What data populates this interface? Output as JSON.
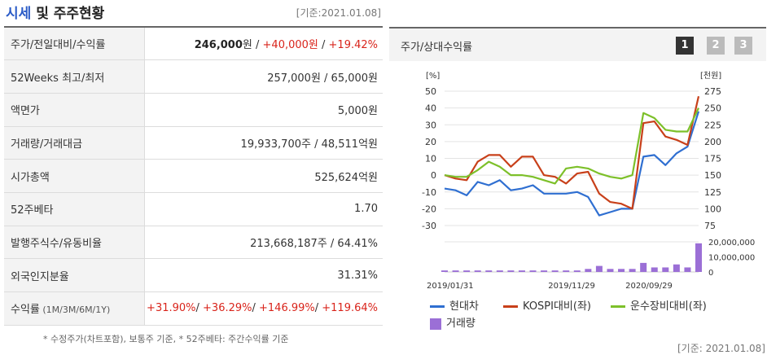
{
  "header": {
    "title_blue": "시세",
    "title_rest": " 및 주주현황",
    "date": "[기준:2021.01.08]"
  },
  "table": {
    "rows": [
      {
        "label": "주가/전일대비/수익률",
        "v1": "246,000",
        "u1": "원",
        "sep1": " / ",
        "v2": "+40,000원",
        "sep2": " / ",
        "v3": "+19.42%"
      },
      {
        "label": "52Weeks 최고/최저",
        "value": "257,000원 / 65,000원"
      },
      {
        "label": "액면가",
        "value": "5,000원"
      },
      {
        "label": "거래량/거래대금",
        "value": "19,933,700주 / 48,511억원"
      },
      {
        "label": "시가총액",
        "value": "525,624억원"
      },
      {
        "label": "52주베타",
        "value": "1.70"
      },
      {
        "label": "발행주식수/유동비율",
        "value": "213,668,187주 / 64.41%"
      },
      {
        "label": "외국인지분율",
        "value": "31.31%"
      },
      {
        "label": "수익률",
        "label_small": " (1M/3M/6M/1Y)",
        "r1": "+31.90%",
        "r2": "+36.29%",
        "r3": "+146.99%",
        "r4": "+119.64%",
        "sep": "/ "
      }
    ],
    "note": "* 수정주가(차트포함), 보통주 기준, * 52주베타: 주간수익률 기준"
  },
  "chart_panel": {
    "title": "주가/상대수익률",
    "pages": [
      "1",
      "2",
      "3"
    ],
    "date": "[기준: 2021.01.08]"
  },
  "chart_data": {
    "type": "line",
    "left_unit": "[%]",
    "right_unit": "[천원]",
    "y_left_ticks": [
      "50",
      "40",
      "30",
      "20",
      "10",
      "0",
      "-10",
      "-20",
      "-30"
    ],
    "y_right_ticks": [
      "275",
      "250",
      "225",
      "200",
      "175",
      "150",
      "125",
      "100",
      "75"
    ],
    "volume_ticks": [
      "20,000,000",
      "10,000,000",
      "0"
    ],
    "x_ticks": [
      "2019/01/31",
      "2019/11/29",
      "2020/09/29"
    ],
    "ylim_left": [
      -30,
      50
    ],
    "ylim_right": [
      75,
      275
    ],
    "series": [
      {
        "name": "현대차",
        "color": "#2f6fd1",
        "values": [
          -8,
          -9,
          -12,
          -4,
          -6,
          -3,
          -9,
          -8,
          -6,
          -11,
          -11,
          -11,
          -10,
          -13,
          -24,
          -22,
          -20,
          -20,
          11,
          12,
          6,
          13,
          17,
          38
        ]
      },
      {
        "name": "KOSPI대비(좌)",
        "color": "#c8401a",
        "values": [
          0,
          -2,
          -3,
          8,
          12,
          12,
          5,
          11,
          11,
          0,
          -1,
          -5,
          1,
          2,
          -11,
          -16,
          -17,
          -20,
          31,
          32,
          23,
          21,
          18,
          47
        ]
      },
      {
        "name": "운수장비대비(좌)",
        "color": "#7dc02a",
        "values": [
          0,
          -1,
          -1,
          3,
          8,
          5,
          0,
          0,
          -1,
          -3,
          -5,
          4,
          5,
          4,
          1,
          -1,
          -2,
          0,
          37,
          34,
          27,
          26,
          26,
          40
        ]
      }
    ],
    "volume": {
      "name": "거래량",
      "color": "#9b6fd6",
      "values": [
        1,
        1,
        1,
        1,
        1,
        1,
        1,
        1,
        1,
        1,
        1,
        1,
        1,
        2,
        4,
        2,
        2,
        2,
        6,
        3,
        3,
        5,
        3,
        19
      ]
    }
  }
}
